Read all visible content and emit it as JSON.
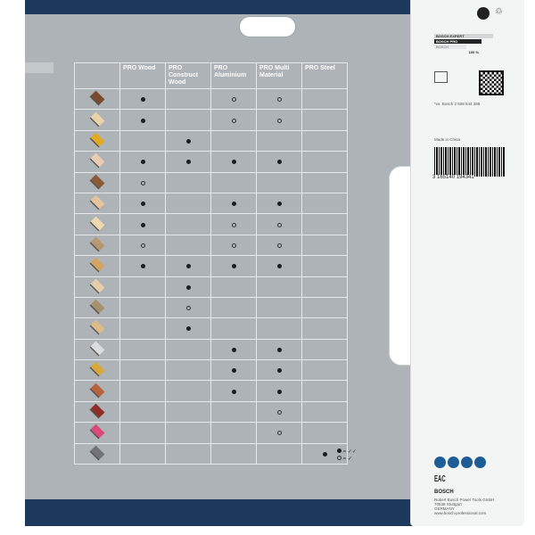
{
  "columns": [
    "PRO Wood",
    "PRO Construct Wood",
    "PRO Aluminium",
    "PRO Multi Material",
    "PRO Steel"
  ],
  "rows": [
    {
      "color": "#7a4a2e",
      "marks": [
        "full",
        "",
        "partial",
        "partial",
        ""
      ]
    },
    {
      "color": "#e8d2a6",
      "marks": [
        "full",
        "",
        "partial",
        "partial",
        ""
      ]
    },
    {
      "color": "#e2aa22",
      "marks": [
        "",
        "full",
        "",
        "",
        ""
      ]
    },
    {
      "color": "#e8cdb2",
      "marks": [
        "full",
        "full",
        "full",
        "full",
        ""
      ]
    },
    {
      "color": "#8b5a36",
      "marks": [
        "partial",
        "",
        "",
        "",
        ""
      ]
    },
    {
      "color": "#e5c39c",
      "marks": [
        "full",
        "",
        "full",
        "full",
        ""
      ]
    },
    {
      "color": "#efd8b0",
      "marks": [
        "full",
        "",
        "partial",
        "partial",
        ""
      ]
    },
    {
      "color": "#b79770",
      "marks": [
        "partial",
        "",
        "partial",
        "partial",
        ""
      ]
    },
    {
      "color": "#d4a462",
      "marks": [
        "full",
        "full",
        "full",
        "full",
        ""
      ]
    },
    {
      "color": "#e6cfa8",
      "marks": [
        "",
        "full",
        "",
        "",
        ""
      ]
    },
    {
      "color": "#a7906e",
      "marks": [
        "",
        "partial",
        "",
        "",
        ""
      ]
    },
    {
      "color": "#ddbb88",
      "marks": [
        "",
        "full",
        "",
        "",
        ""
      ]
    },
    {
      "color": "#d9dde0",
      "marks": [
        "",
        "",
        "full",
        "full",
        ""
      ]
    },
    {
      "color": "#d8a93a",
      "marks": [
        "",
        "",
        "full",
        "full",
        ""
      ]
    },
    {
      "color": "#b9633e",
      "marks": [
        "",
        "",
        "full",
        "full",
        ""
      ]
    },
    {
      "color": "#8e2e26",
      "marks": [
        "",
        "",
        "",
        "partial",
        ""
      ]
    },
    {
      "color": "#d94a7a",
      "marks": [
        "",
        "",
        "",
        "partial",
        ""
      ]
    },
    {
      "color": "#707478",
      "marks": [
        "",
        "",
        "",
        "",
        "full"
      ]
    }
  ],
  "legend": {
    "full": "= ✓✓",
    "partial": "= ✓"
  },
  "card": {
    "ranks": [
      "BOSCH EXPERT",
      "BOSCH PRO",
      "BOSCH"
    ],
    "percent": "100 %",
    "ref": "*vs. Bosch 2 608 644 385",
    "origin": "Made in China",
    "barcode": "3 165140 194341",
    "brand": "BOSCH",
    "eac": "EAC",
    "address": [
      "Robert Bosch Power Tools GmbH",
      "70538 Stuttgart",
      "GERMANY",
      "www.bosch-professional.com"
    ]
  },
  "colors": {
    "navy": "#1d3a5c",
    "panel": "#adb3b7",
    "blue_icon": "#1e5c96"
  }
}
